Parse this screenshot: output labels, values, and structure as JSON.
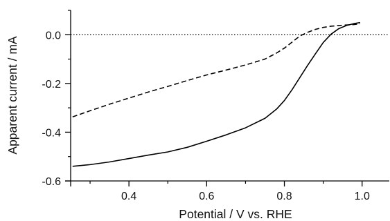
{
  "chart_data": {
    "type": "line",
    "title": "",
    "xlabel": "Potential / V vs. RHE",
    "ylabel": "Apparent current / mA",
    "xlim": [
      0.25,
      1.07
    ],
    "ylim": [
      -0.6,
      0.1
    ],
    "x_ticks": [
      0.4,
      0.6,
      0.8,
      1.0
    ],
    "x_tick_labels": [
      "0.4",
      "0.6",
      "0.8",
      "1.0"
    ],
    "y_ticks": [
      -0.6,
      -0.4,
      -0.2,
      0.0
    ],
    "y_tick_labels": [
      "-0.6",
      "-0.4",
      "-0.2",
      "0.0"
    ],
    "grid": false,
    "legend": "none",
    "reference_line": {
      "y": 0.0,
      "style": "dotted"
    },
    "series": [
      {
        "style": "solid",
        "color": "#000000",
        "x": [
          0.255,
          0.3,
          0.35,
          0.4,
          0.45,
          0.5,
          0.55,
          0.6,
          0.65,
          0.7,
          0.75,
          0.78,
          0.8,
          0.82,
          0.84,
          0.86,
          0.88,
          0.9,
          0.92,
          0.94,
          0.96,
          0.98,
          0.995
        ],
        "y": [
          -0.54,
          -0.533,
          -0.522,
          -0.508,
          -0.494,
          -0.481,
          -0.462,
          -0.437,
          -0.411,
          -0.382,
          -0.343,
          -0.305,
          -0.27,
          -0.225,
          -0.175,
          -0.125,
          -0.078,
          -0.032,
          0.002,
          0.025,
          0.038,
          0.046,
          0.05
        ]
      },
      {
        "style": "dashed",
        "color": "#000000",
        "x": [
          0.255,
          0.3,
          0.35,
          0.4,
          0.45,
          0.5,
          0.55,
          0.6,
          0.65,
          0.7,
          0.75,
          0.78,
          0.8,
          0.82,
          0.84,
          0.86,
          0.88,
          0.9,
          0.92,
          0.95,
          0.98,
          0.995
        ],
        "y": [
          -0.337,
          -0.312,
          -0.285,
          -0.26,
          -0.235,
          -0.212,
          -0.188,
          -0.165,
          -0.145,
          -0.124,
          -0.1,
          -0.075,
          -0.055,
          -0.03,
          -0.005,
          0.01,
          0.022,
          0.03,
          0.035,
          0.039,
          0.042,
          0.045
        ]
      }
    ]
  }
}
